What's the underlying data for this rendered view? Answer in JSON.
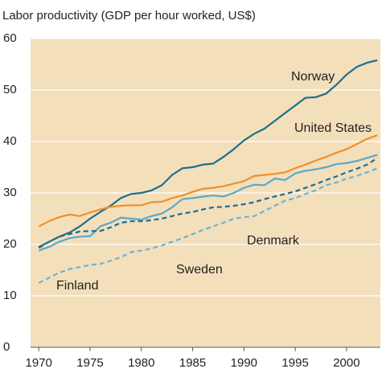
{
  "chart_data": {
    "type": "line",
    "title": "Labor productivity (GDP per hour worked, US$)",
    "x": [
      1970,
      1971,
      1972,
      1973,
      1974,
      1975,
      1976,
      1977,
      1978,
      1979,
      1980,
      1981,
      1982,
      1983,
      1984,
      1985,
      1986,
      1987,
      1988,
      1989,
      1990,
      1991,
      1992,
      1993,
      1994,
      1995,
      1996,
      1997,
      1998,
      1999,
      2000,
      2001,
      2002,
      2003
    ],
    "series": [
      {
        "name": "Norway",
        "color": "#1b6f8f",
        "dashed": false,
        "values": [
          19.5,
          20.5,
          21.5,
          22.3,
          23.5,
          25,
          26.3,
          27.5,
          29,
          29.8,
          30,
          30.5,
          31.5,
          33.5,
          34.8,
          35,
          35.5,
          35.7,
          37,
          38.5,
          40.2,
          41.5,
          42.5,
          44,
          45.5,
          47,
          48.5,
          48.6,
          49.3,
          51,
          53,
          54.5,
          55.3,
          55.8
        ]
      },
      {
        "name": "United States",
        "color": "#f0902a",
        "dashed": false,
        "values": [
          23.5,
          24.5,
          25.3,
          25.8,
          25.5,
          26.2,
          26.8,
          27.3,
          27.5,
          27.6,
          27.6,
          28.2,
          28.3,
          29,
          29.5,
          30.2,
          30.8,
          31,
          31.3,
          31.8,
          32.3,
          33.3,
          33.5,
          33.7,
          34,
          34.8,
          35.5,
          36.3,
          37,
          37.8,
          38.5,
          39.5,
          40.5,
          41.2
        ]
      },
      {
        "name": "Sweden",
        "color": "#5aa9ca",
        "dashed": false,
        "values": [
          18.8,
          19.5,
          20.5,
          21.2,
          21.5,
          21.6,
          23.5,
          24.2,
          25.2,
          25,
          24.8,
          25.5,
          26,
          27.2,
          28.8,
          29,
          29.3,
          29.5,
          29.3,
          30,
          31,
          31.6,
          31.5,
          32.8,
          32.5,
          33.8,
          34.3,
          34.6,
          35,
          35.6,
          35.8,
          36.2,
          36.8,
          37.4
        ]
      },
      {
        "name": "Denmark",
        "color": "#1b6f8f",
        "dashed": true,
        "values": [
          19.3,
          20.5,
          21.5,
          22,
          22.5,
          22.6,
          22.6,
          23.3,
          24.2,
          24.5,
          24.5,
          24.7,
          25,
          25.5,
          26,
          26.3,
          26.8,
          27.2,
          27.3,
          27.5,
          27.8,
          28.2,
          28.8,
          29.3,
          29.8,
          30.3,
          31,
          31.7,
          32.5,
          33.2,
          34,
          34.7,
          35.5,
          36.8
        ]
      },
      {
        "name": "Finland",
        "color": "#6ab5d6",
        "dashed": true,
        "values": [
          12.5,
          13.5,
          14.5,
          15.2,
          15.6,
          16,
          16.2,
          16.8,
          17.5,
          18.5,
          18.8,
          19.2,
          19.8,
          20.5,
          21.2,
          22,
          22.8,
          23.5,
          24.2,
          25,
          25.3,
          25.5,
          26.5,
          27.5,
          28.5,
          29,
          29.8,
          30.5,
          31.5,
          32,
          32.8,
          33.3,
          34,
          34.8
        ]
      }
    ],
    "xlim": [
      1969.2,
      2003.3
    ],
    "xticks": [
      1970,
      1975,
      1980,
      1985,
      1990,
      1995,
      2000
    ],
    "ylim": [
      0,
      60
    ],
    "yticks": [
      0,
      10,
      20,
      30,
      40,
      50,
      60
    ],
    "grid": true
  }
}
